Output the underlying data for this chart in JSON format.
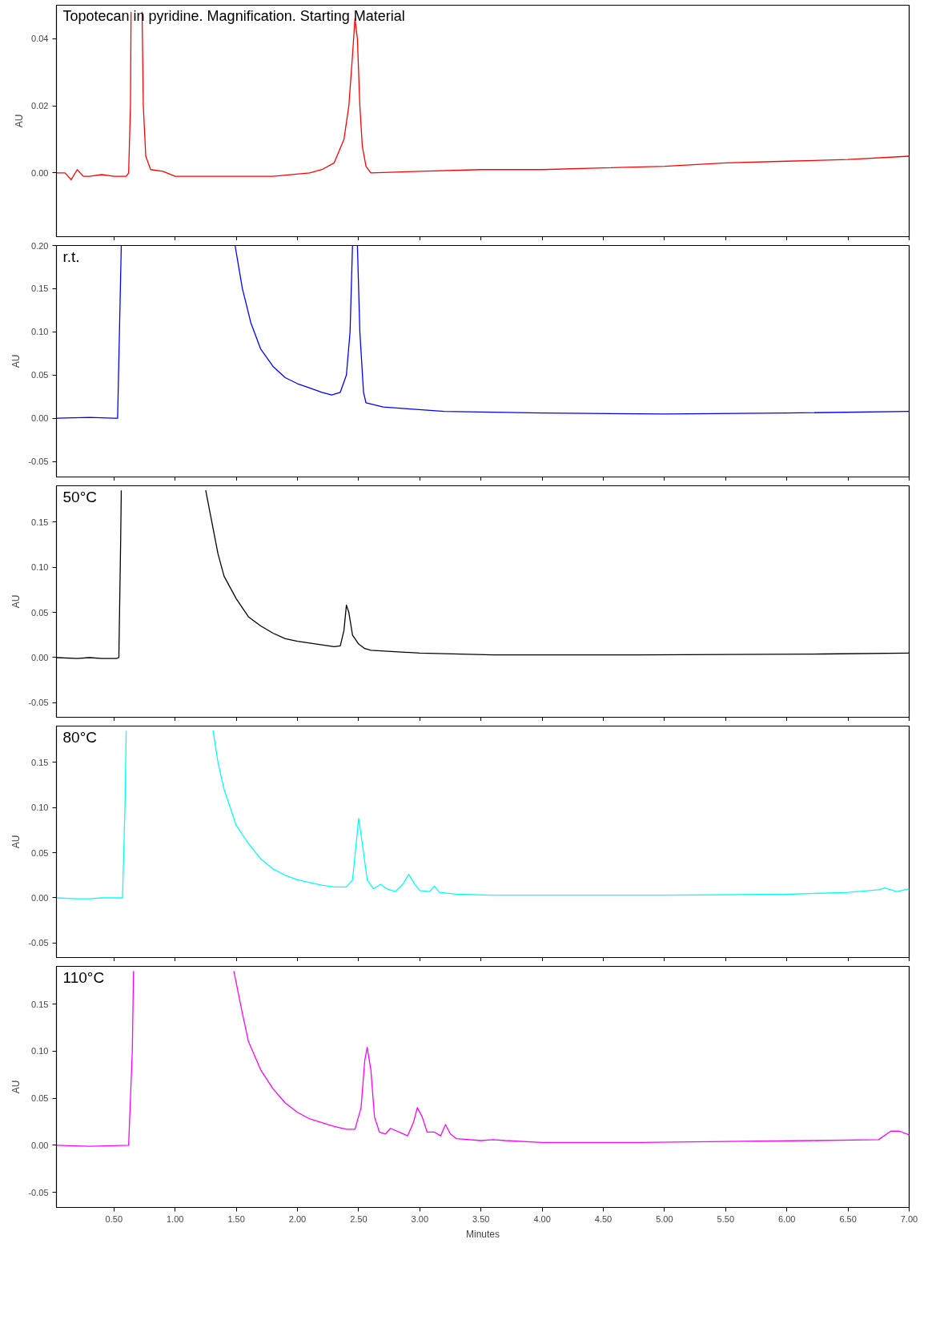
{
  "chart_data": [
    {
      "type": "line",
      "ylabel": "AU",
      "annotations": [
        "Topotecan in pyridine. Magnification. Starting Material"
      ],
      "tick_labels": "y",
      "grid": false,
      "xlim": [
        0.03,
        7.0
      ],
      "xticks": [
        {
          "value": 0.5,
          "label": null
        },
        {
          "value": 1.0,
          "label": null
        },
        {
          "value": 1.5,
          "label": null
        },
        {
          "value": 2.0,
          "label": null
        },
        {
          "value": 2.5,
          "label": null
        },
        {
          "value": 3.0,
          "label": null
        },
        {
          "value": 3.5,
          "label": null
        },
        {
          "value": 4.0,
          "label": null
        },
        {
          "value": 4.5,
          "label": null
        },
        {
          "value": 5.0,
          "label": null
        },
        {
          "value": 5.5,
          "label": null
        },
        {
          "value": 6.0,
          "label": null
        },
        {
          "value": 6.5,
          "label": null
        },
        {
          "value": 7.0,
          "label": null
        }
      ],
      "ylim": [
        -0.019,
        0.05
      ],
      "yticks": [
        {
          "value": 0,
          "label": "0.00"
        },
        {
          "value": 0.02,
          "label": "0.02"
        },
        {
          "value": 0.04,
          "label": "0.04"
        }
      ],
      "x": [
        0.03,
        0.1,
        0.15,
        0.2,
        0.25,
        0.3,
        0.4,
        0.5,
        0.6,
        0.62,
        0.635,
        0.64,
        0.7,
        0.73,
        0.74,
        0.76,
        0.8,
        0.9,
        1.0,
        1.8,
        2.1,
        2.2,
        2.3,
        2.38,
        2.42,
        2.45,
        2.47,
        2.49,
        2.51,
        2.53,
        2.56,
        2.6,
        3.0,
        3.5,
        4.0,
        4.5,
        5.0,
        5.5,
        6.0,
        6.5,
        7.0
      ],
      "series": [
        {
          "color": "#ff0000",
          "values": [
            0,
            0,
            -0.002,
            0.001,
            -0.001,
            -0.001,
            -0.0005,
            -0.001,
            -0.001,
            0,
            0.02,
            0.048,
            null,
            0.048,
            0.02,
            0.005,
            0.001,
            0.0005,
            -0.001,
            -0.001,
            0,
            0.001,
            0.003,
            0.01,
            0.02,
            0.035,
            0.046,
            0.04,
            0.02,
            0.008,
            0.002,
            0,
            0.0005,
            0.001,
            0.001,
            0.0015,
            0.002,
            0.003,
            0.0035,
            0.004,
            0.005
          ]
        }
      ]
    },
    {
      "type": "line",
      "ylabel": "AU",
      "annotations": [
        "r.t."
      ],
      "tick_labels": "y",
      "grid": false,
      "xlim": [
        0.03,
        7.0
      ],
      "xticks": [
        {
          "value": 0.5,
          "label": null
        },
        {
          "value": 1.0,
          "label": null
        },
        {
          "value": 1.5,
          "label": null
        },
        {
          "value": 2.0,
          "label": null
        },
        {
          "value": 2.5,
          "label": null
        },
        {
          "value": 3.0,
          "label": null
        },
        {
          "value": 3.5,
          "label": null
        },
        {
          "value": 4.0,
          "label": null
        },
        {
          "value": 4.5,
          "label": null
        },
        {
          "value": 5.0,
          "label": null
        },
        {
          "value": 5.5,
          "label": null
        },
        {
          "value": 6.0,
          "label": null
        },
        {
          "value": 6.5,
          "label": null
        },
        {
          "value": 7.0,
          "label": null
        }
      ],
      "ylim": [
        -0.068,
        0.2
      ],
      "yticks": [
        {
          "value": -0.05,
          "label": "-0.05"
        },
        {
          "value": 0,
          "label": "0.00"
        },
        {
          "value": 0.05,
          "label": "0.05"
        },
        {
          "value": 0.1,
          "label": "0.10"
        },
        {
          "value": 0.15,
          "label": "0.15"
        },
        {
          "value": 0.2,
          "label": "0.20"
        }
      ],
      "x": [
        0.03,
        0.3,
        0.5,
        0.53,
        0.545,
        0.56,
        1.0,
        1.49,
        1.55,
        1.62,
        1.7,
        1.8,
        1.9,
        2.0,
        2.1,
        2.2,
        2.28,
        2.35,
        2.4,
        2.43,
        2.45,
        2.47,
        2.49,
        2.51,
        2.54,
        2.56,
        2.7,
        2.9,
        3.2,
        4.0,
        5.0,
        6.0,
        7.0
      ],
      "series": [
        {
          "color": "#0000ff",
          "values": [
            0,
            0.001,
            0,
            0,
            0.1,
            0.2,
            null,
            0.2,
            0.15,
            0.11,
            0.08,
            0.06,
            0.047,
            0.04,
            0.035,
            0.03,
            0.027,
            0.03,
            0.05,
            0.1,
            0.2,
            null,
            0.2,
            0.1,
            0.03,
            0.018,
            0.013,
            0.011,
            0.008,
            0.006,
            0.005,
            0.006,
            0.008
          ]
        }
      ]
    },
    {
      "type": "line",
      "ylabel": "AU",
      "annotations": [
        "50°C"
      ],
      "tick_labels": "y",
      "grid": false,
      "xlim": [
        0.03,
        7.0
      ],
      "xticks": [
        {
          "value": 0.5,
          "label": null
        },
        {
          "value": 1.0,
          "label": null
        },
        {
          "value": 1.5,
          "label": null
        },
        {
          "value": 2.0,
          "label": null
        },
        {
          "value": 2.5,
          "label": null
        },
        {
          "value": 3.0,
          "label": null
        },
        {
          "value": 3.5,
          "label": null
        },
        {
          "value": 4.0,
          "label": null
        },
        {
          "value": 4.5,
          "label": null
        },
        {
          "value": 5.0,
          "label": null
        },
        {
          "value": 5.5,
          "label": null
        },
        {
          "value": 6.0,
          "label": null
        },
        {
          "value": 6.5,
          "label": null
        },
        {
          "value": 7.0,
          "label": null
        }
      ],
      "ylim": [
        -0.066,
        0.19
      ],
      "yticks": [
        {
          "value": -0.05,
          "label": "-0.05"
        },
        {
          "value": 0,
          "label": "0.00"
        },
        {
          "value": 0.05,
          "label": "0.05"
        },
        {
          "value": 0.1,
          "label": "0.10"
        },
        {
          "value": 0.15,
          "label": "0.15"
        }
      ],
      "x": [
        0.03,
        0.2,
        0.3,
        0.4,
        0.52,
        0.54,
        0.555,
        0.56,
        1.0,
        1.25,
        1.3,
        1.35,
        1.4,
        1.5,
        1.6,
        1.7,
        1.8,
        1.9,
        2.0,
        2.1,
        2.2,
        2.3,
        2.35,
        2.38,
        2.4,
        2.42,
        2.45,
        2.5,
        2.55,
        2.6,
        3.0,
        3.6,
        4.8,
        6.3,
        7.0
      ],
      "series": [
        {
          "color": "#000000",
          "values": [
            0,
            -0.001,
            0,
            -0.001,
            -0.001,
            0.0,
            0.13,
            0.185,
            null,
            0.185,
            0.15,
            0.115,
            0.09,
            0.065,
            0.045,
            0.035,
            0.027,
            0.021,
            0.018,
            0.016,
            0.014,
            0.012,
            0.013,
            0.03,
            0.058,
            0.05,
            0.025,
            0.015,
            0.01,
            0.008,
            0.005,
            0.003,
            0.003,
            0.004,
            0.005
          ]
        }
      ]
    },
    {
      "type": "line",
      "ylabel": "AU",
      "annotations": [
        "80°C"
      ],
      "tick_labels": "y",
      "grid": false,
      "xlim": [
        0.03,
        7.0
      ],
      "xticks": [
        {
          "value": 0.5,
          "label": null
        },
        {
          "value": 1.0,
          "label": null
        },
        {
          "value": 1.5,
          "label": null
        },
        {
          "value": 2.0,
          "label": null
        },
        {
          "value": 2.5,
          "label": null
        },
        {
          "value": 3.0,
          "label": null
        },
        {
          "value": 3.5,
          "label": null
        },
        {
          "value": 4.0,
          "label": null
        },
        {
          "value": 4.5,
          "label": null
        },
        {
          "value": 5.0,
          "label": null
        },
        {
          "value": 5.5,
          "label": null
        },
        {
          "value": 6.0,
          "label": null
        },
        {
          "value": 6.5,
          "label": null
        },
        {
          "value": 7.0,
          "label": null
        }
      ],
      "ylim": [
        -0.066,
        0.19
      ],
      "yticks": [
        {
          "value": -0.05,
          "label": "-0.05"
        },
        {
          "value": 0,
          "label": "0.00"
        },
        {
          "value": 0.05,
          "label": "0.05"
        },
        {
          "value": 0.1,
          "label": "0.10"
        },
        {
          "value": 0.15,
          "label": "0.15"
        }
      ],
      "x": [
        0.03,
        0.2,
        0.3,
        0.4,
        0.57,
        0.59,
        0.6,
        1.0,
        1.31,
        1.35,
        1.4,
        1.5,
        1.6,
        1.7,
        1.8,
        1.9,
        2.0,
        2.1,
        2.2,
        2.3,
        2.4,
        2.45,
        2.48,
        2.5,
        2.53,
        2.57,
        2.62,
        2.68,
        2.73,
        2.8,
        2.86,
        2.91,
        2.96,
        3.0,
        3.08,
        3.12,
        3.16,
        3.3,
        3.6,
        5.0,
        6.0,
        6.5,
        6.75,
        6.8,
        6.9,
        7.0
      ],
      "series": [
        {
          "color": "#00ffff",
          "values": [
            0,
            -0.001,
            -0.001,
            0,
            0,
            0.1,
            0.185,
            null,
            0.185,
            0.15,
            0.12,
            0.08,
            0.06,
            0.043,
            0.032,
            0.025,
            0.02,
            0.017,
            0.014,
            0.012,
            0.012,
            0.02,
            0.06,
            0.088,
            0.06,
            0.02,
            0.01,
            0.015,
            0.01,
            0.007,
            0.015,
            0.026,
            0.015,
            0.008,
            0.007,
            0.013,
            0.006,
            0.004,
            0.003,
            0.003,
            0.004,
            0.006,
            0.009,
            0.011,
            0.007,
            0.01
          ]
        }
      ]
    },
    {
      "type": "line",
      "ylabel": "AU",
      "xlabel": "Minutes",
      "annotations": [
        "110°C"
      ],
      "grid": false,
      "xlim": [
        0.03,
        7.0
      ],
      "xticks": [
        {
          "value": 0.5,
          "label": "0.50"
        },
        {
          "value": 1.0,
          "label": "1.00"
        },
        {
          "value": 1.5,
          "label": "1.50"
        },
        {
          "value": 2.0,
          "label": "2.00"
        },
        {
          "value": 2.5,
          "label": "2.50"
        },
        {
          "value": 3.0,
          "label": "3.00"
        },
        {
          "value": 3.5,
          "label": "3.50"
        },
        {
          "value": 4.0,
          "label": "4.00"
        },
        {
          "value": 4.5,
          "label": "4.50"
        },
        {
          "value": 5.0,
          "label": "5.00"
        },
        {
          "value": 5.5,
          "label": "5.50"
        },
        {
          "value": 6.0,
          "label": "6.00"
        },
        {
          "value": 6.5,
          "label": "6.50"
        },
        {
          "value": 7.0,
          "label": "7.00"
        }
      ],
      "ylim": [
        -0.066,
        0.19
      ],
      "yticks": [
        {
          "value": -0.05,
          "label": "-0.05"
        },
        {
          "value": 0,
          "label": "0.00"
        },
        {
          "value": 0.05,
          "label": "0.05"
        },
        {
          "value": 0.1,
          "label": "0.10"
        },
        {
          "value": 0.15,
          "label": "0.15"
        }
      ],
      "x": [
        0.03,
        0.3,
        0.62,
        0.65,
        0.66,
        1.0,
        1.48,
        1.55,
        1.6,
        1.7,
        1.8,
        1.9,
        2.0,
        2.1,
        2.2,
        2.3,
        2.4,
        2.47,
        2.52,
        2.55,
        2.57,
        2.6,
        2.63,
        2.67,
        2.72,
        2.76,
        2.85,
        2.9,
        2.95,
        2.98,
        3.02,
        3.06,
        3.12,
        3.17,
        3.21,
        3.25,
        3.3,
        3.5,
        3.6,
        3.7,
        4.0,
        4.8,
        5.5,
        6.2,
        6.75,
        6.85,
        6.92,
        7.0
      ],
      "series": [
        {
          "color": "#ff00ff",
          "values": [
            0,
            -0.001,
            0,
            0.1,
            0.185,
            null,
            0.185,
            0.14,
            0.11,
            0.08,
            0.06,
            0.045,
            0.035,
            0.028,
            0.024,
            0.02,
            0.017,
            0.017,
            0.04,
            0.09,
            0.104,
            0.08,
            0.03,
            0.014,
            0.012,
            0.018,
            0.013,
            0.01,
            0.025,
            0.04,
            0.03,
            0.014,
            0.014,
            0.01,
            0.022,
            0.012,
            0.007,
            0.005,
            0.006,
            0.005,
            0.003,
            0.003,
            0.004,
            0.005,
            0.006,
            0.015,
            0.015,
            0.011
          ]
        }
      ]
    }
  ]
}
